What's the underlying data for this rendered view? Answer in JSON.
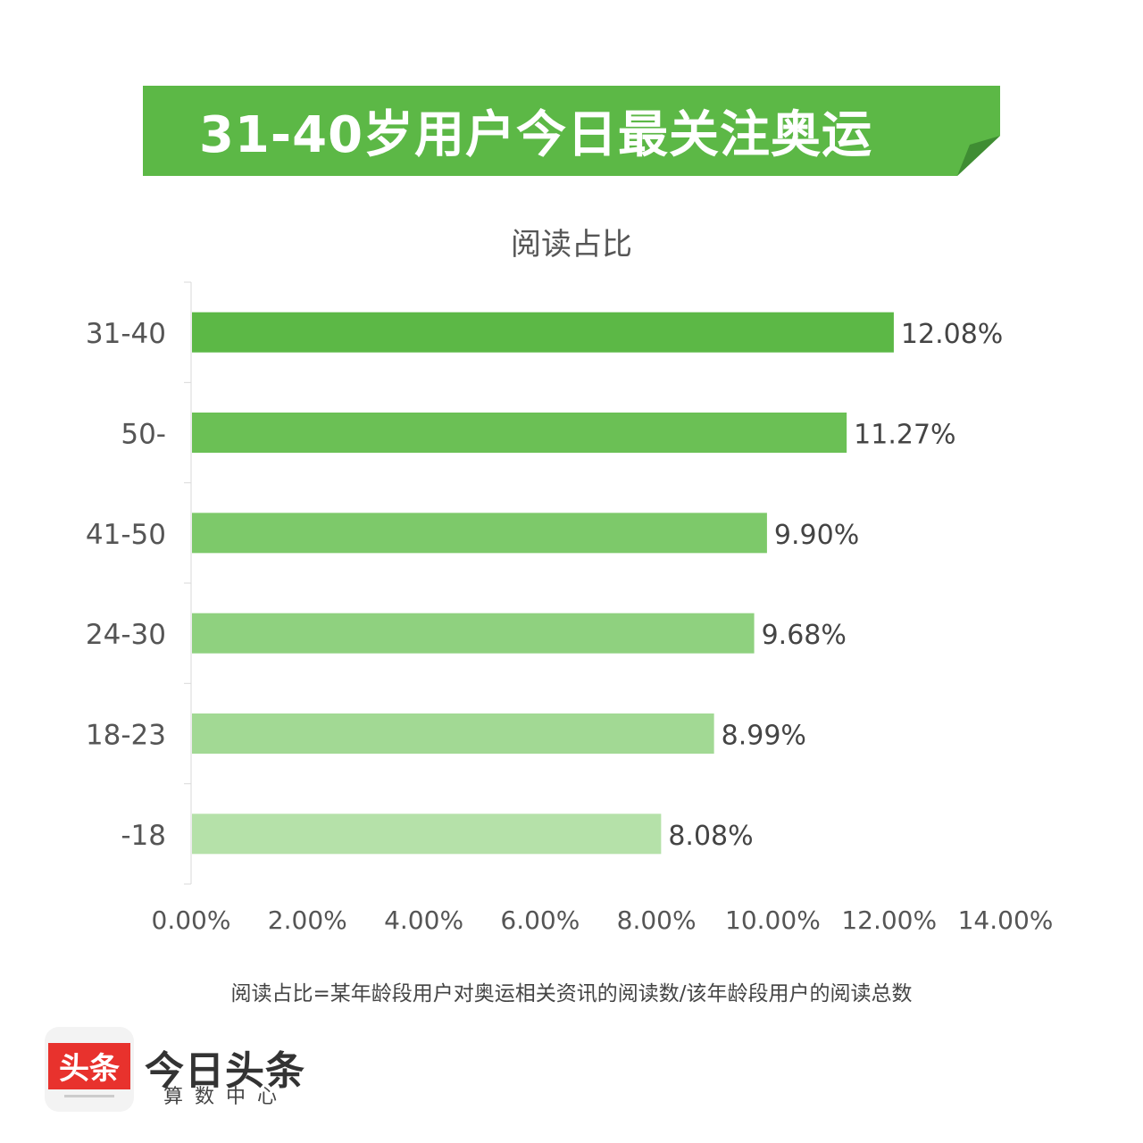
{
  "banner": {
    "title": "31-40岁用户今日最关注奥运"
  },
  "chart_data": {
    "type": "bar",
    "orientation": "horizontal",
    "title": "阅读占比",
    "categories": [
      "31-40",
      "50-",
      "41-50",
      "24-30",
      "18-23",
      "-18"
    ],
    "values": [
      12.08,
      11.27,
      9.9,
      9.68,
      8.99,
      8.08
    ],
    "value_labels": [
      "12.08%",
      "11.27%",
      "9.90%",
      "9.68%",
      "8.99%",
      "8.08%"
    ],
    "xlim": [
      0,
      14
    ],
    "x_ticks": [
      "0.00%",
      "2.00%",
      "4.00%",
      "6.00%",
      "8.00%",
      "10.00%",
      "12.00%",
      "14.00%"
    ],
    "bar_colors": [
      "#5cb846",
      "#6bc055",
      "#7dc96a",
      "#8fd17f",
      "#a2d994",
      "#b5e1a9"
    ],
    "grid": false
  },
  "footnote": "阅读占比=某年龄段用户对奥运相关资讯的阅读数/该年龄段用户的阅读总数",
  "logo": {
    "icon_text": "头条",
    "name": "今日头条",
    "sub": "算数中心"
  },
  "colors": {
    "banner": "#5cb846",
    "logo_red": "#e8322d"
  }
}
